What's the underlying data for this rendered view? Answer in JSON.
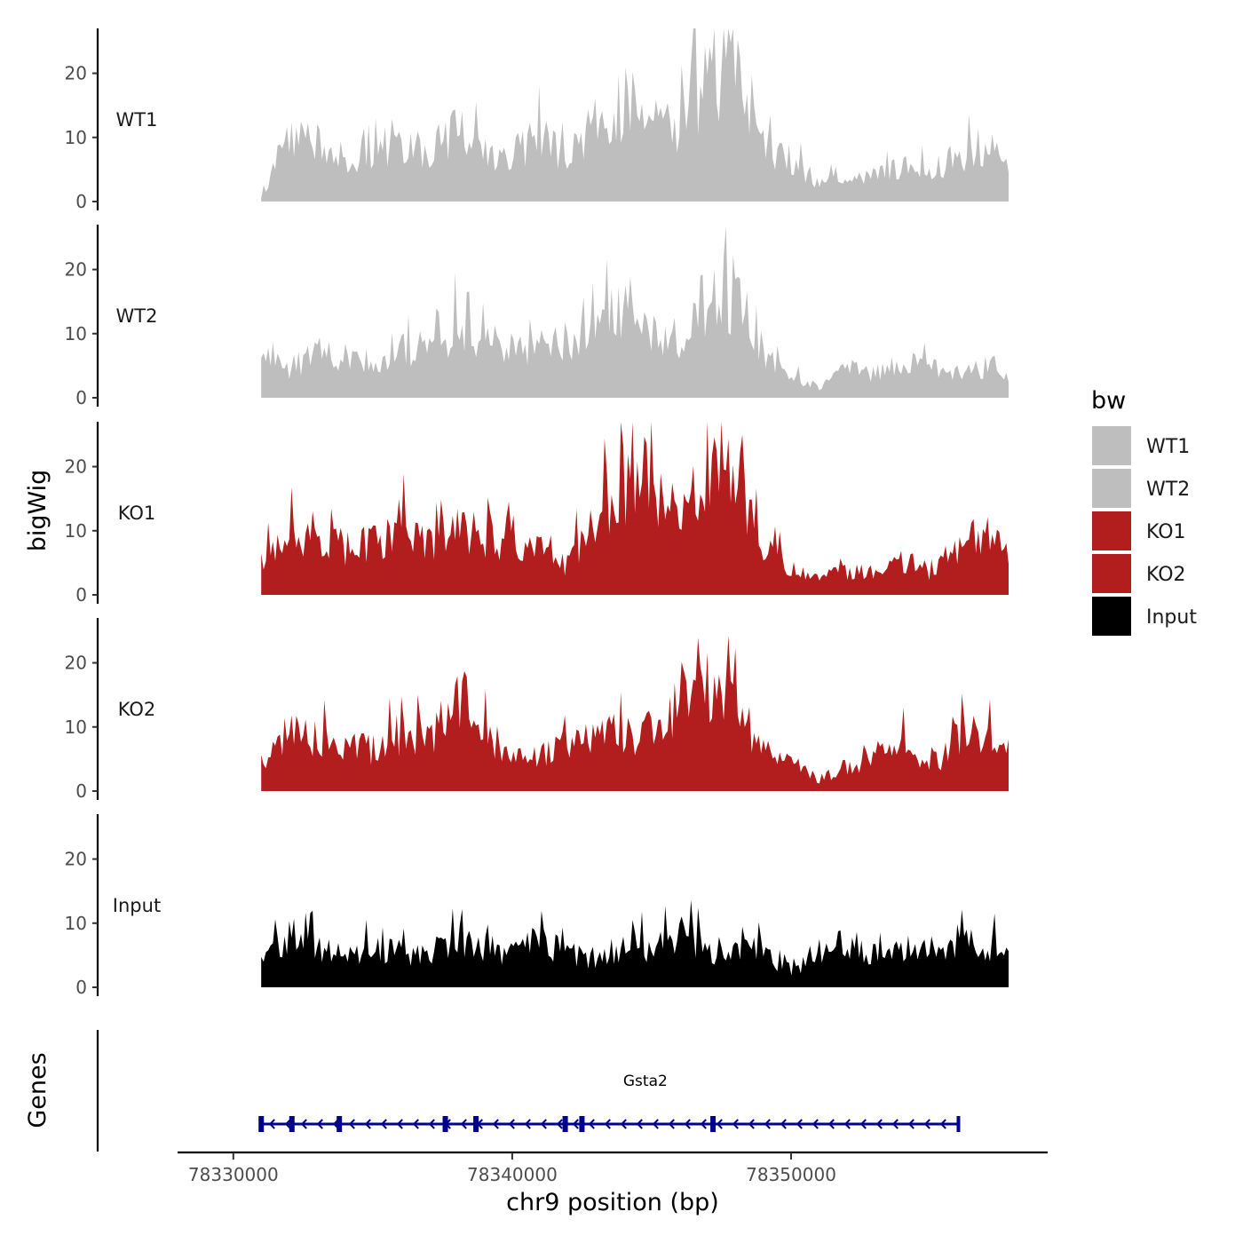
{
  "chart_data": {
    "type": "area",
    "title": "",
    "xlabel": "chr9 position (bp)",
    "ylabel": "bigWig",
    "genes_axis_label": "Genes",
    "xlim": [
      78328000,
      78359200
    ],
    "x_ticks": [
      78330000,
      78340000,
      78350000
    ],
    "x_tick_labels": [
      "78330000",
      "78340000",
      "78350000"
    ],
    "ylim": [
      0,
      27
    ],
    "y_ticks": [
      0,
      10,
      20
    ],
    "y_tick_labels": [
      "0",
      "10",
      "20"
    ],
    "legend": {
      "title": "bw",
      "position": "right",
      "entries": [
        {
          "label": "WT1",
          "color": "#bebebe"
        },
        {
          "label": "WT2",
          "color": "#bebebe"
        },
        {
          "label": "KO1",
          "color": "#b21e1e"
        },
        {
          "label": "KO2",
          "color": "#b21e1e"
        },
        {
          "label": "Input",
          "color": "#000000"
        }
      ]
    },
    "x": [
      78331000,
      78332000,
      78333000,
      78334000,
      78335000,
      78336000,
      78337000,
      78338000,
      78339000,
      78340000,
      78341000,
      78342000,
      78343000,
      78344000,
      78345000,
      78346000,
      78347000,
      78348000,
      78349000,
      78350000,
      78351000,
      78352000,
      78353000,
      78354000,
      78355000,
      78356000,
      78357000,
      78357800
    ],
    "series": [
      {
        "name": "WT1",
        "color": "#bebebe",
        "values": [
          0.5,
          13,
          11,
          7,
          9,
          10,
          8,
          12,
          9,
          8,
          11,
          8,
          13,
          17,
          16,
          12,
          21,
          24,
          10,
          7,
          3,
          4,
          5,
          6,
          5,
          8,
          10,
          6
        ]
      },
      {
        "name": "WT2",
        "color": "#bebebe",
        "values": [
          6,
          5,
          8,
          7,
          6,
          9,
          8,
          12,
          9,
          10,
          8,
          9,
          11,
          16,
          12,
          10,
          17,
          18,
          8,
          4,
          2,
          5,
          4,
          6,
          5,
          4,
          5,
          3
        ]
      },
      {
        "name": "KO1",
        "color": "#b21e1e",
        "values": [
          6,
          10,
          9,
          8,
          9,
          12,
          9,
          11,
          9,
          10,
          9,
          5,
          15,
          19,
          17,
          14,
          22,
          20,
          8,
          5,
          3,
          4,
          4,
          6,
          4,
          8,
          11,
          7
        ]
      },
      {
        "name": "KO2",
        "color": "#b21e1e",
        "values": [
          5,
          10,
          9,
          8,
          7,
          10,
          9,
          17,
          11,
          6,
          6,
          8,
          10,
          9,
          11,
          16,
          18,
          14,
          7,
          5,
          2,
          4,
          6,
          8,
          4,
          9,
          10,
          8
        ]
      },
      {
        "name": "Input",
        "color": "#000000",
        "values": [
          4,
          9,
          7,
          6,
          7,
          6,
          6,
          8,
          7,
          6,
          8,
          6,
          5,
          7,
          7,
          10,
          6,
          7,
          6,
          3,
          5,
          8,
          6,
          7,
          7,
          8,
          7,
          7
        ]
      }
    ],
    "gene": {
      "name": "Gsta2",
      "start": 78331000,
      "end": 78356000,
      "strand": "-",
      "color": "#00008b",
      "exons": [
        78331000,
        78332100,
        78333800,
        78337600,
        78338700,
        78341900,
        78342500,
        78347200
      ]
    }
  }
}
